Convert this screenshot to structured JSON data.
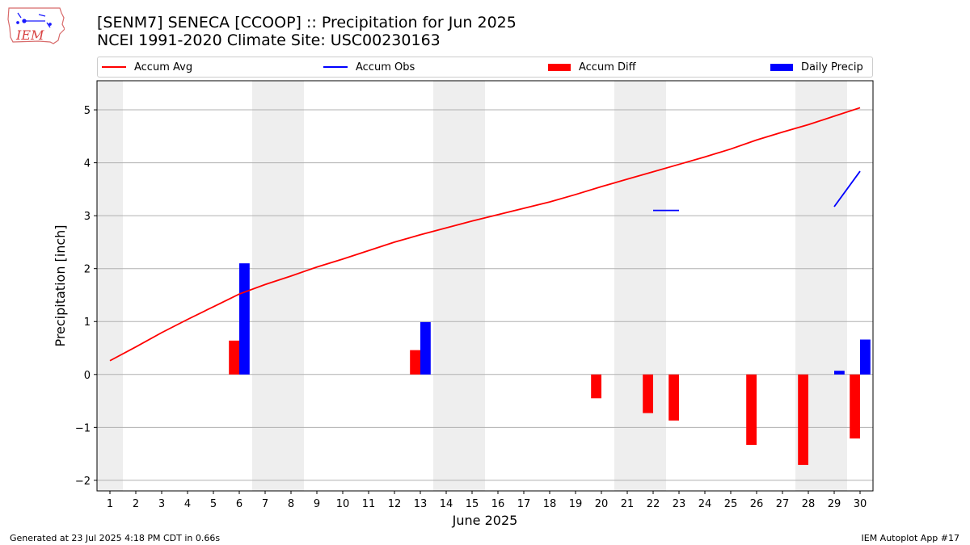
{
  "logo": {
    "text": "IEM"
  },
  "title": {
    "line1": "[SENM7] SENECA [CCOOP] :: Precipitation for Jun 2025",
    "line2": "NCEI 1991-2020 Climate Site: USC00230163"
  },
  "footer": {
    "left": "Generated at 23 Jul 2025 4:18 PM CDT in 0.66s",
    "right": "IEM Autoplot App #17"
  },
  "chart_data": {
    "type": "bar",
    "xlabel": "June 2025",
    "ylabel": "Precipitation [inch]",
    "ylim": [
      -2.2,
      5.55
    ],
    "xlim": [
      0.5,
      30.5
    ],
    "yticks": [
      -2,
      -1,
      0,
      1,
      2,
      3,
      4,
      5
    ],
    "ytick_labels": [
      "−2",
      "−1",
      "0",
      "1",
      "2",
      "3",
      "4",
      "5"
    ],
    "days": [
      1,
      2,
      3,
      4,
      5,
      6,
      7,
      8,
      9,
      10,
      11,
      12,
      13,
      14,
      15,
      16,
      17,
      18,
      19,
      20,
      21,
      22,
      23,
      24,
      25,
      26,
      27,
      28,
      29,
      30
    ],
    "weekend_days": [
      1,
      7,
      8,
      14,
      15,
      21,
      22,
      28,
      29
    ],
    "grid": "horizontal",
    "legend_position": "top",
    "colors": {
      "accum_avg": "#ff0000",
      "accum_obs": "#0000ff",
      "accum_diff": "#ff0000",
      "daily_precip": "#0000ff",
      "weekend_shade": "#eeeeee",
      "grid": "#b0b0b0"
    },
    "series": [
      {
        "name": "Accum Avg",
        "kind": "line",
        "values": [
          0.26,
          0.52,
          0.79,
          1.04,
          1.28,
          1.52,
          1.7,
          1.86,
          2.03,
          2.18,
          2.34,
          2.5,
          2.64,
          2.77,
          2.9,
          3.02,
          3.14,
          3.26,
          3.4,
          3.55,
          3.69,
          3.83,
          3.97,
          4.11,
          4.26,
          4.43,
          4.58,
          4.72,
          4.88,
          5.04
        ]
      },
      {
        "name": "Accum Obs",
        "kind": "line",
        "values": [
          null,
          null,
          null,
          null,
          null,
          null,
          null,
          null,
          null,
          null,
          null,
          null,
          null,
          null,
          null,
          null,
          null,
          null,
          null,
          null,
          null,
          3.1,
          3.1,
          null,
          null,
          null,
          null,
          null,
          3.17,
          3.84
        ]
      },
      {
        "name": "Accum Diff",
        "kind": "bar",
        "values": [
          0,
          0,
          0,
          0,
          0,
          0.64,
          0,
          0,
          0,
          0,
          0,
          0,
          0.46,
          0,
          0,
          0,
          0,
          0,
          0,
          -0.45,
          0,
          -0.73,
          -0.87,
          0,
          0,
          -1.33,
          0,
          -1.71,
          0,
          -1.21
        ]
      },
      {
        "name": "Daily Precip",
        "kind": "bar",
        "values": [
          0,
          0,
          0,
          0,
          0,
          2.1,
          0,
          0,
          0,
          0,
          0,
          0,
          0.99,
          0,
          0,
          0,
          0,
          0,
          0,
          0,
          0,
          0,
          0,
          0,
          0,
          0,
          0,
          0,
          0.07,
          0.66
        ]
      }
    ]
  }
}
